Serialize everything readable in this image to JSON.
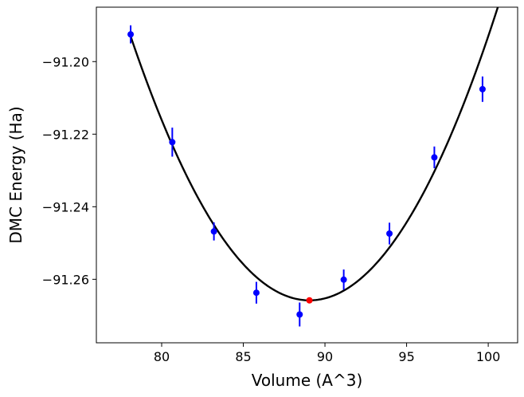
{
  "chart_data": {
    "type": "scatter",
    "xlabel": "Volume (A^3)",
    "ylabel": "DMC Energy (Ha)",
    "xlim": [
      76,
      101.8
    ],
    "ylim": [
      -91.2775,
      -91.185
    ],
    "x_ticks": [
      80,
      85,
      90,
      95,
      100
    ],
    "x_tick_labels": [
      "80",
      "85",
      "90",
      "95",
      "100"
    ],
    "y_ticks": [
      -91.2,
      -91.22,
      -91.24,
      -91.26
    ],
    "y_tick_labels": [
      "−91.20",
      "−91.22",
      "−91.24",
      "−91.26"
    ],
    "grid": false,
    "legend": "none",
    "series": [
      {
        "kind": "errorbar",
        "color": "#0000ff",
        "points": [
          {
            "x": 78.1,
            "y": -91.1925,
            "err": 0.0025
          },
          {
            "x": 80.65,
            "y": -91.2222,
            "err": 0.004
          },
          {
            "x": 83.2,
            "y": -91.2468,
            "err": 0.0025
          },
          {
            "x": 85.8,
            "y": -91.2637,
            "err": 0.003
          },
          {
            "x": 88.45,
            "y": -91.2697,
            "err": 0.0033
          },
          {
            "x": 91.15,
            "y": -91.2601,
            "err": 0.0028
          },
          {
            "x": 93.95,
            "y": -91.2474,
            "err": 0.003
          },
          {
            "x": 96.7,
            "y": -91.2264,
            "err": 0.003
          },
          {
            "x": 99.65,
            "y": -91.2076,
            "err": 0.0035
          }
        ]
      },
      {
        "kind": "fit-curve",
        "color": "#000000",
        "x_range": [
          78.1,
          101.8
        ],
        "vertex": {
          "x": 89.05,
          "y": -91.2658
        },
        "curvature": 0.000607
      },
      {
        "kind": "minimum",
        "color": "#ff0000",
        "points": [
          {
            "x": 89.05,
            "y": -91.2658
          }
        ]
      }
    ]
  }
}
